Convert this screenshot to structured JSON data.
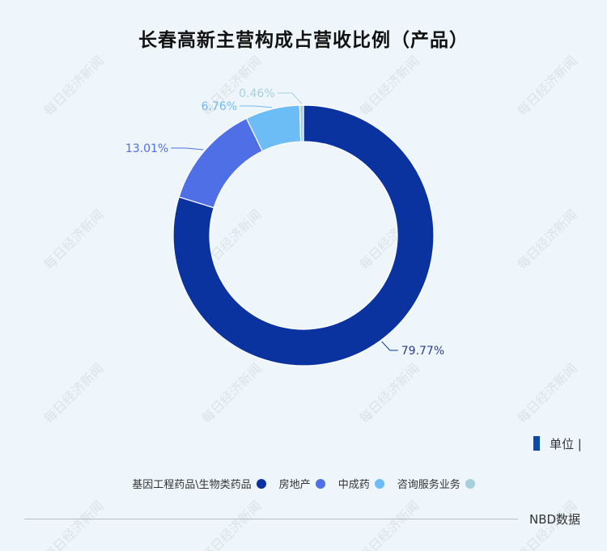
{
  "title": "长春高新主营构成占营收比例（产品）",
  "unit_label": "单位 |",
  "source": "NBD数据",
  "watermark": "每日经济新闻",
  "chart_data": {
    "type": "pie",
    "variant": "donut",
    "title": "长春高新主营构成占营收比例（产品）",
    "slices": [
      {
        "name": "基因工程药品\\生物类药品",
        "value": 79.77,
        "label": "79.77%",
        "color": "#0b33a0"
      },
      {
        "name": "房地产",
        "value": 13.01,
        "label": "13.01%",
        "color": "#4f6fe6"
      },
      {
        "name": "中成药",
        "value": 6.76,
        "label": "6.76%",
        "color": "#6cbdf5"
      },
      {
        "name": "咨询服务业务",
        "value": 0.46,
        "label": "0.46%",
        "color": "#a6cfdc"
      }
    ],
    "legend_position": "bottom"
  }
}
